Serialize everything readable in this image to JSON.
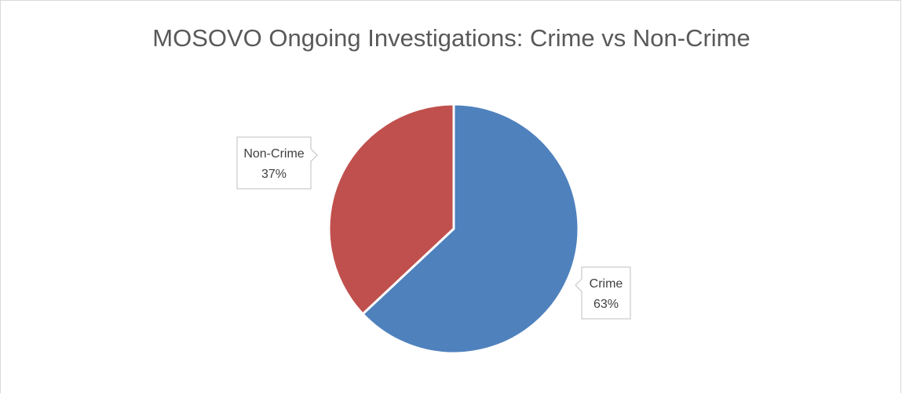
{
  "chart_data": {
    "type": "pie",
    "title": "MOSOVO Ongoing Investigations: Crime vs Non-Crime",
    "slices": [
      {
        "label": "Crime",
        "value": 63,
        "display": "63%",
        "color": "#4f81bd"
      },
      {
        "label": "Non-Crime",
        "value": 37,
        "display": "37%",
        "color": "#c0504d"
      }
    ],
    "legend": "none",
    "data_labels": "callouts showing category name and percentage"
  }
}
